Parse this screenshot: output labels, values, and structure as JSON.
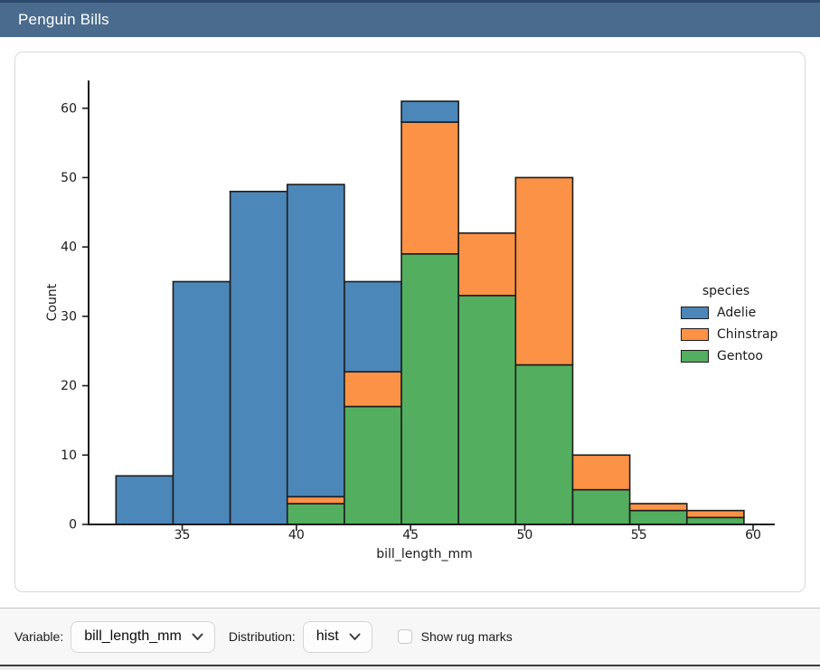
{
  "header": {
    "title": "Penguin Bills"
  },
  "controls": {
    "variable": {
      "label": "Variable:",
      "value": "bill_length_mm"
    },
    "distribution": {
      "label": "Distribution:",
      "value": "hist"
    },
    "rug": {
      "label": "Show rug marks",
      "checked": false
    }
  },
  "chart_data": {
    "type": "bar",
    "subtype": "stacked-histogram",
    "title": "",
    "xlabel": "bill_length_mm",
    "ylabel": "Count",
    "legend": {
      "title": "species",
      "position": "center-right",
      "frame": false
    },
    "grid": false,
    "xlim": [
      30.9,
      60.95
    ],
    "ylim": [
      0,
      64
    ],
    "x_ticks": [
      35,
      40,
      45,
      50,
      55,
      60
    ],
    "y_ticks": [
      0,
      10,
      20,
      30,
      40,
      50,
      60
    ],
    "bin_edges": [
      32.1,
      34.6,
      37.1,
      39.6,
      42.1,
      44.6,
      47.1,
      49.6,
      52.1,
      54.6,
      57.1,
      59.6
    ],
    "stack_bottom_to_top": [
      "Gentoo",
      "Chinstrap",
      "Adelie"
    ],
    "series": [
      {
        "name": "Adelie",
        "color": "#4c87b9",
        "values": [
          7,
          35,
          48,
          45,
          13,
          3,
          0,
          0,
          0,
          0,
          0
        ]
      },
      {
        "name": "Chinstrap",
        "color": "#fc9245",
        "values": [
          0,
          0,
          0,
          1,
          5,
          19,
          9,
          27,
          5,
          1,
          1
        ]
      },
      {
        "name": "Gentoo",
        "color": "#53ae5f",
        "values": [
          0,
          0,
          0,
          3,
          17,
          39,
          33,
          23,
          5,
          2,
          1
        ]
      }
    ],
    "edge_color": "#1c1c1c",
    "text_color": "#1a1a1a"
  }
}
